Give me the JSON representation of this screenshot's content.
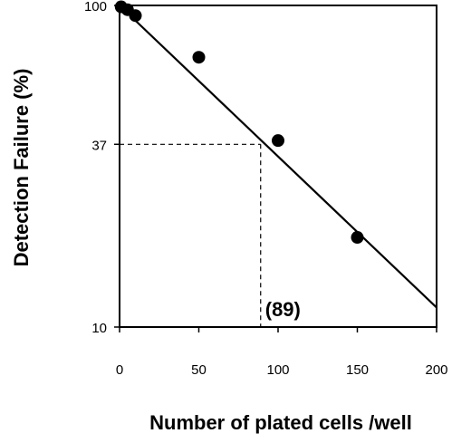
{
  "chart_data": {
    "type": "scatter",
    "title": "",
    "xlabel": "Number of plated cells /well",
    "ylabel": "Detection Failure (%)",
    "xlim": [
      0,
      200
    ],
    "ylim": [
      10,
      100
    ],
    "y_scale": "log",
    "x_ticks": [
      "0",
      "50",
      "100",
      "150",
      "200"
    ],
    "y_ticks": [
      "100",
      "37",
      "10"
    ],
    "grid": false,
    "legend": "none",
    "series": [
      {
        "points": [
          {
            "x": 1,
            "y": 99
          },
          {
            "x": 5,
            "y": 97
          },
          {
            "x": 10,
            "y": 93
          },
          {
            "x": 50,
            "y": 69
          },
          {
            "x": 100,
            "y": 38
          },
          {
            "x": 150,
            "y": 19
          }
        ]
      }
    ],
    "fit_line": {
      "x": [
        0,
        200
      ],
      "y": [
        100,
        11.5
      ]
    },
    "reference": {
      "x": 89,
      "y": 37,
      "label": "(89)"
    }
  }
}
